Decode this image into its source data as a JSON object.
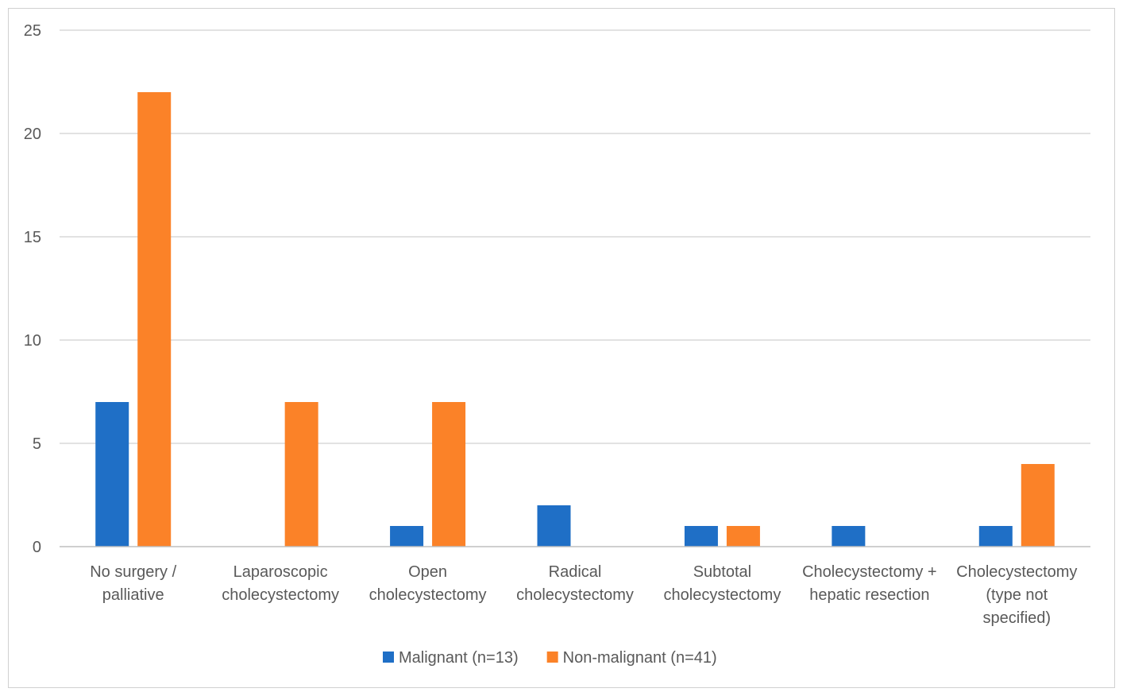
{
  "chart_data": {
    "type": "bar",
    "title": "",
    "xlabel": "",
    "ylabel": "",
    "ylim": [
      0,
      25
    ],
    "yticks": [
      0,
      5,
      10,
      15,
      20,
      25
    ],
    "grid": true,
    "legend_position": "bottom",
    "categories": [
      [
        "No surgery /",
        "palliative"
      ],
      [
        "Laparoscopic",
        "cholecystectomy"
      ],
      [
        "Open",
        "cholecystectomy"
      ],
      [
        "Radical",
        "cholecystectomy"
      ],
      [
        "Subtotal",
        "cholecystectomy"
      ],
      [
        "Cholecystectomy +",
        "hepatic resection"
      ],
      [
        "Cholecystectomy",
        "(type not",
        "specified)"
      ]
    ],
    "series": [
      {
        "name": "Malignant (n=13)",
        "color": "#1f6fc6",
        "values": [
          7,
          0,
          1,
          2,
          1,
          1,
          1
        ]
      },
      {
        "name": "Non-malignant (n=41)",
        "color": "#fb8228",
        "values": [
          22,
          7,
          7,
          0,
          1,
          0,
          4
        ]
      }
    ]
  }
}
